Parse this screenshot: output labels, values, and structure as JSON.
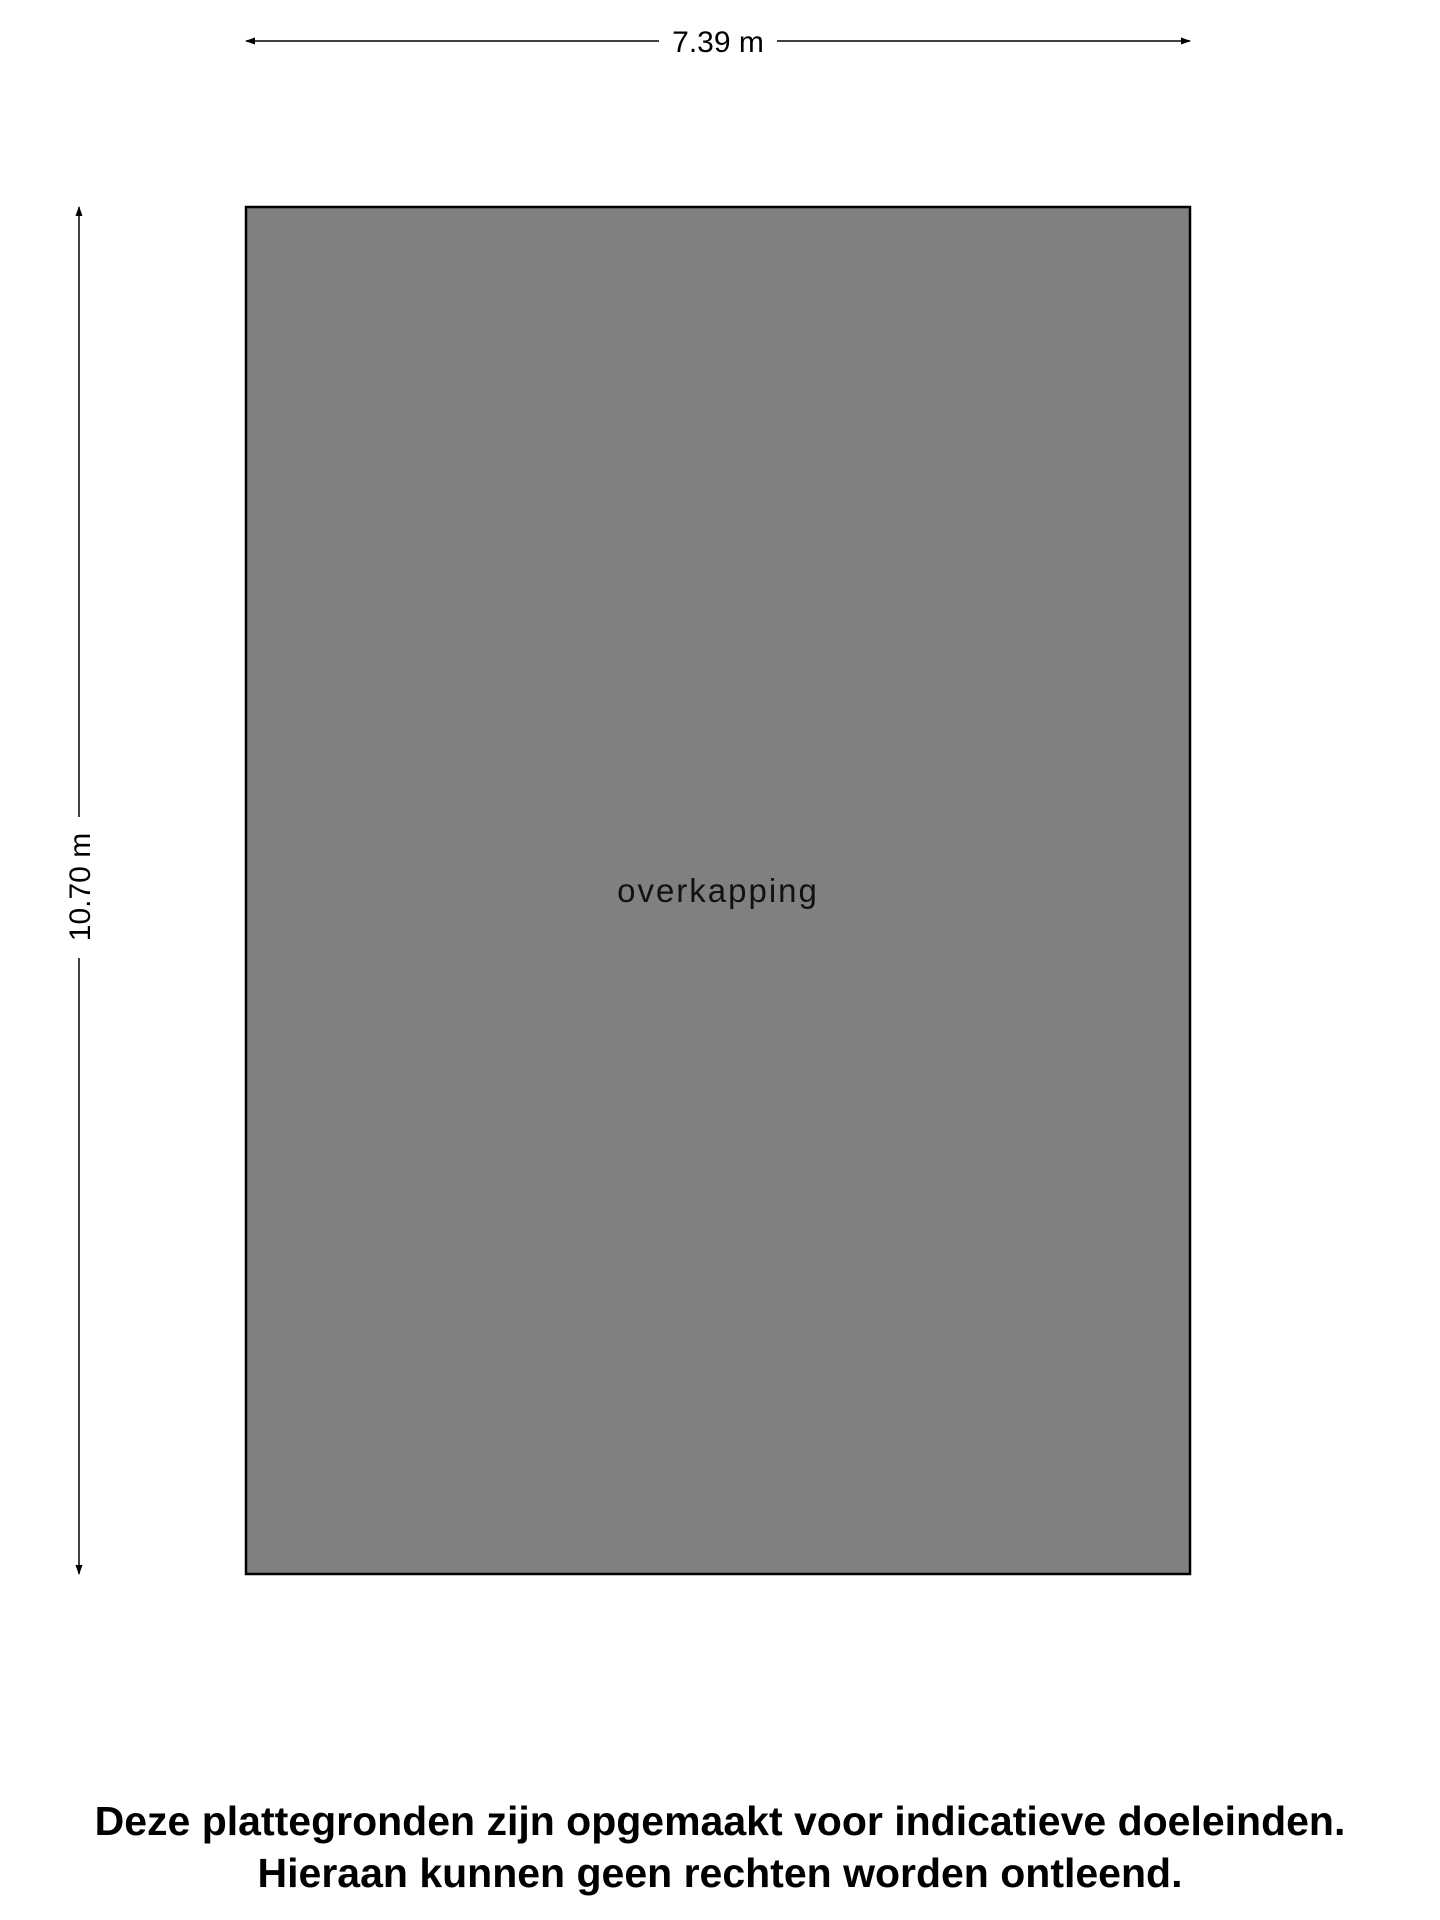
{
  "floorplan": {
    "width_label": "7.39 m",
    "height_label": "10.70 m",
    "room_name": "overkapping",
    "colors": {
      "room_fill": "#808080",
      "outline": "#000000",
      "dimension_line": "#000000",
      "background": "#ffffff"
    }
  },
  "disclaimer": {
    "line1": "Deze plattegronden zijn opgemaakt voor indicatieve doeleinden.",
    "line2": "Hieraan kunnen geen rechten worden ontleend."
  }
}
